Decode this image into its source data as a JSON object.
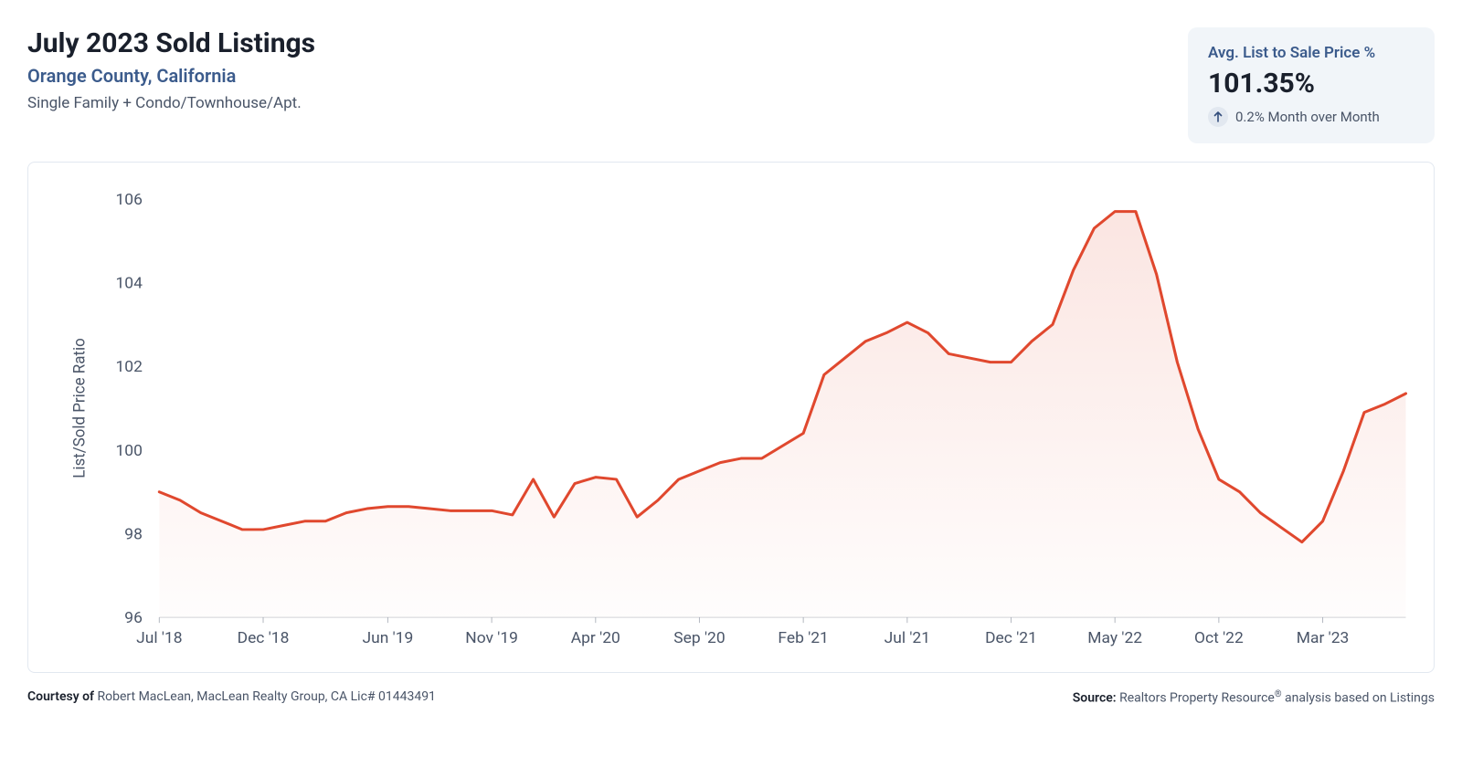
{
  "header": {
    "title": "July 2023 Sold Listings",
    "subtitle": "Orange County, California",
    "types": "Single Family + Condo/Townhouse/Apt."
  },
  "stat": {
    "label": "Avg. List to Sale Price %",
    "value": "101.35%",
    "change_text": "0.2% Month over Month",
    "change_direction": "up",
    "arrow_color": "#334e7c",
    "box_bg": "#f1f5f9"
  },
  "chart": {
    "type": "area",
    "line_color": "#e0482e",
    "line_width": 3,
    "fill_top_color": "rgba(224,72,46,0.14)",
    "fill_bottom_color": "rgba(224,72,46,0.01)",
    "background": "#ffffff",
    "border_color": "#e2e8f0",
    "axis_text_color": "#4a5568",
    "axis_font_size": 17,
    "y_axis_title": "List/Sold Price Ratio",
    "ylim": [
      96,
      106
    ],
    "yticks": [
      96,
      98,
      100,
      102,
      104,
      106
    ],
    "x_labels": [
      "Jul '18",
      "Dec '18",
      "Jun '19",
      "Nov '19",
      "Apr '20",
      "Sep '20",
      "Feb '21",
      "Jul '21",
      "Dec '21",
      "May '22",
      "Oct '22",
      "Mar '23"
    ],
    "x_label_indices": [
      0,
      5,
      11,
      16,
      21,
      26,
      31,
      36,
      41,
      46,
      51,
      56
    ],
    "n_points": 61,
    "values": [
      99.0,
      98.8,
      98.5,
      98.3,
      98.1,
      98.1,
      98.2,
      98.3,
      98.3,
      98.5,
      98.6,
      98.65,
      98.65,
      98.6,
      98.55,
      98.55,
      98.55,
      98.45,
      99.3,
      98.4,
      99.2,
      99.35,
      99.3,
      98.4,
      98.8,
      99.3,
      99.5,
      99.7,
      99.8,
      99.8,
      100.1,
      100.4,
      101.8,
      102.2,
      102.6,
      102.8,
      103.05,
      102.8,
      102.3,
      102.2,
      102.1,
      102.1,
      102.6,
      103.0,
      104.3,
      105.3,
      105.7,
      105.7,
      104.2,
      102.1,
      100.5,
      99.3,
      99.0,
      98.5,
      98.15,
      97.8,
      98.3,
      99.5,
      100.9,
      101.1,
      101.35
    ]
  },
  "footer": {
    "courtesy_label": "Courtesy of",
    "courtesy_text": "Robert MacLean, MacLean Realty Group, CA Lic# 01443491",
    "source_label": "Source:",
    "source_text_pre": "Realtors Property Resource",
    "source_text_post": " analysis based on Listings"
  }
}
